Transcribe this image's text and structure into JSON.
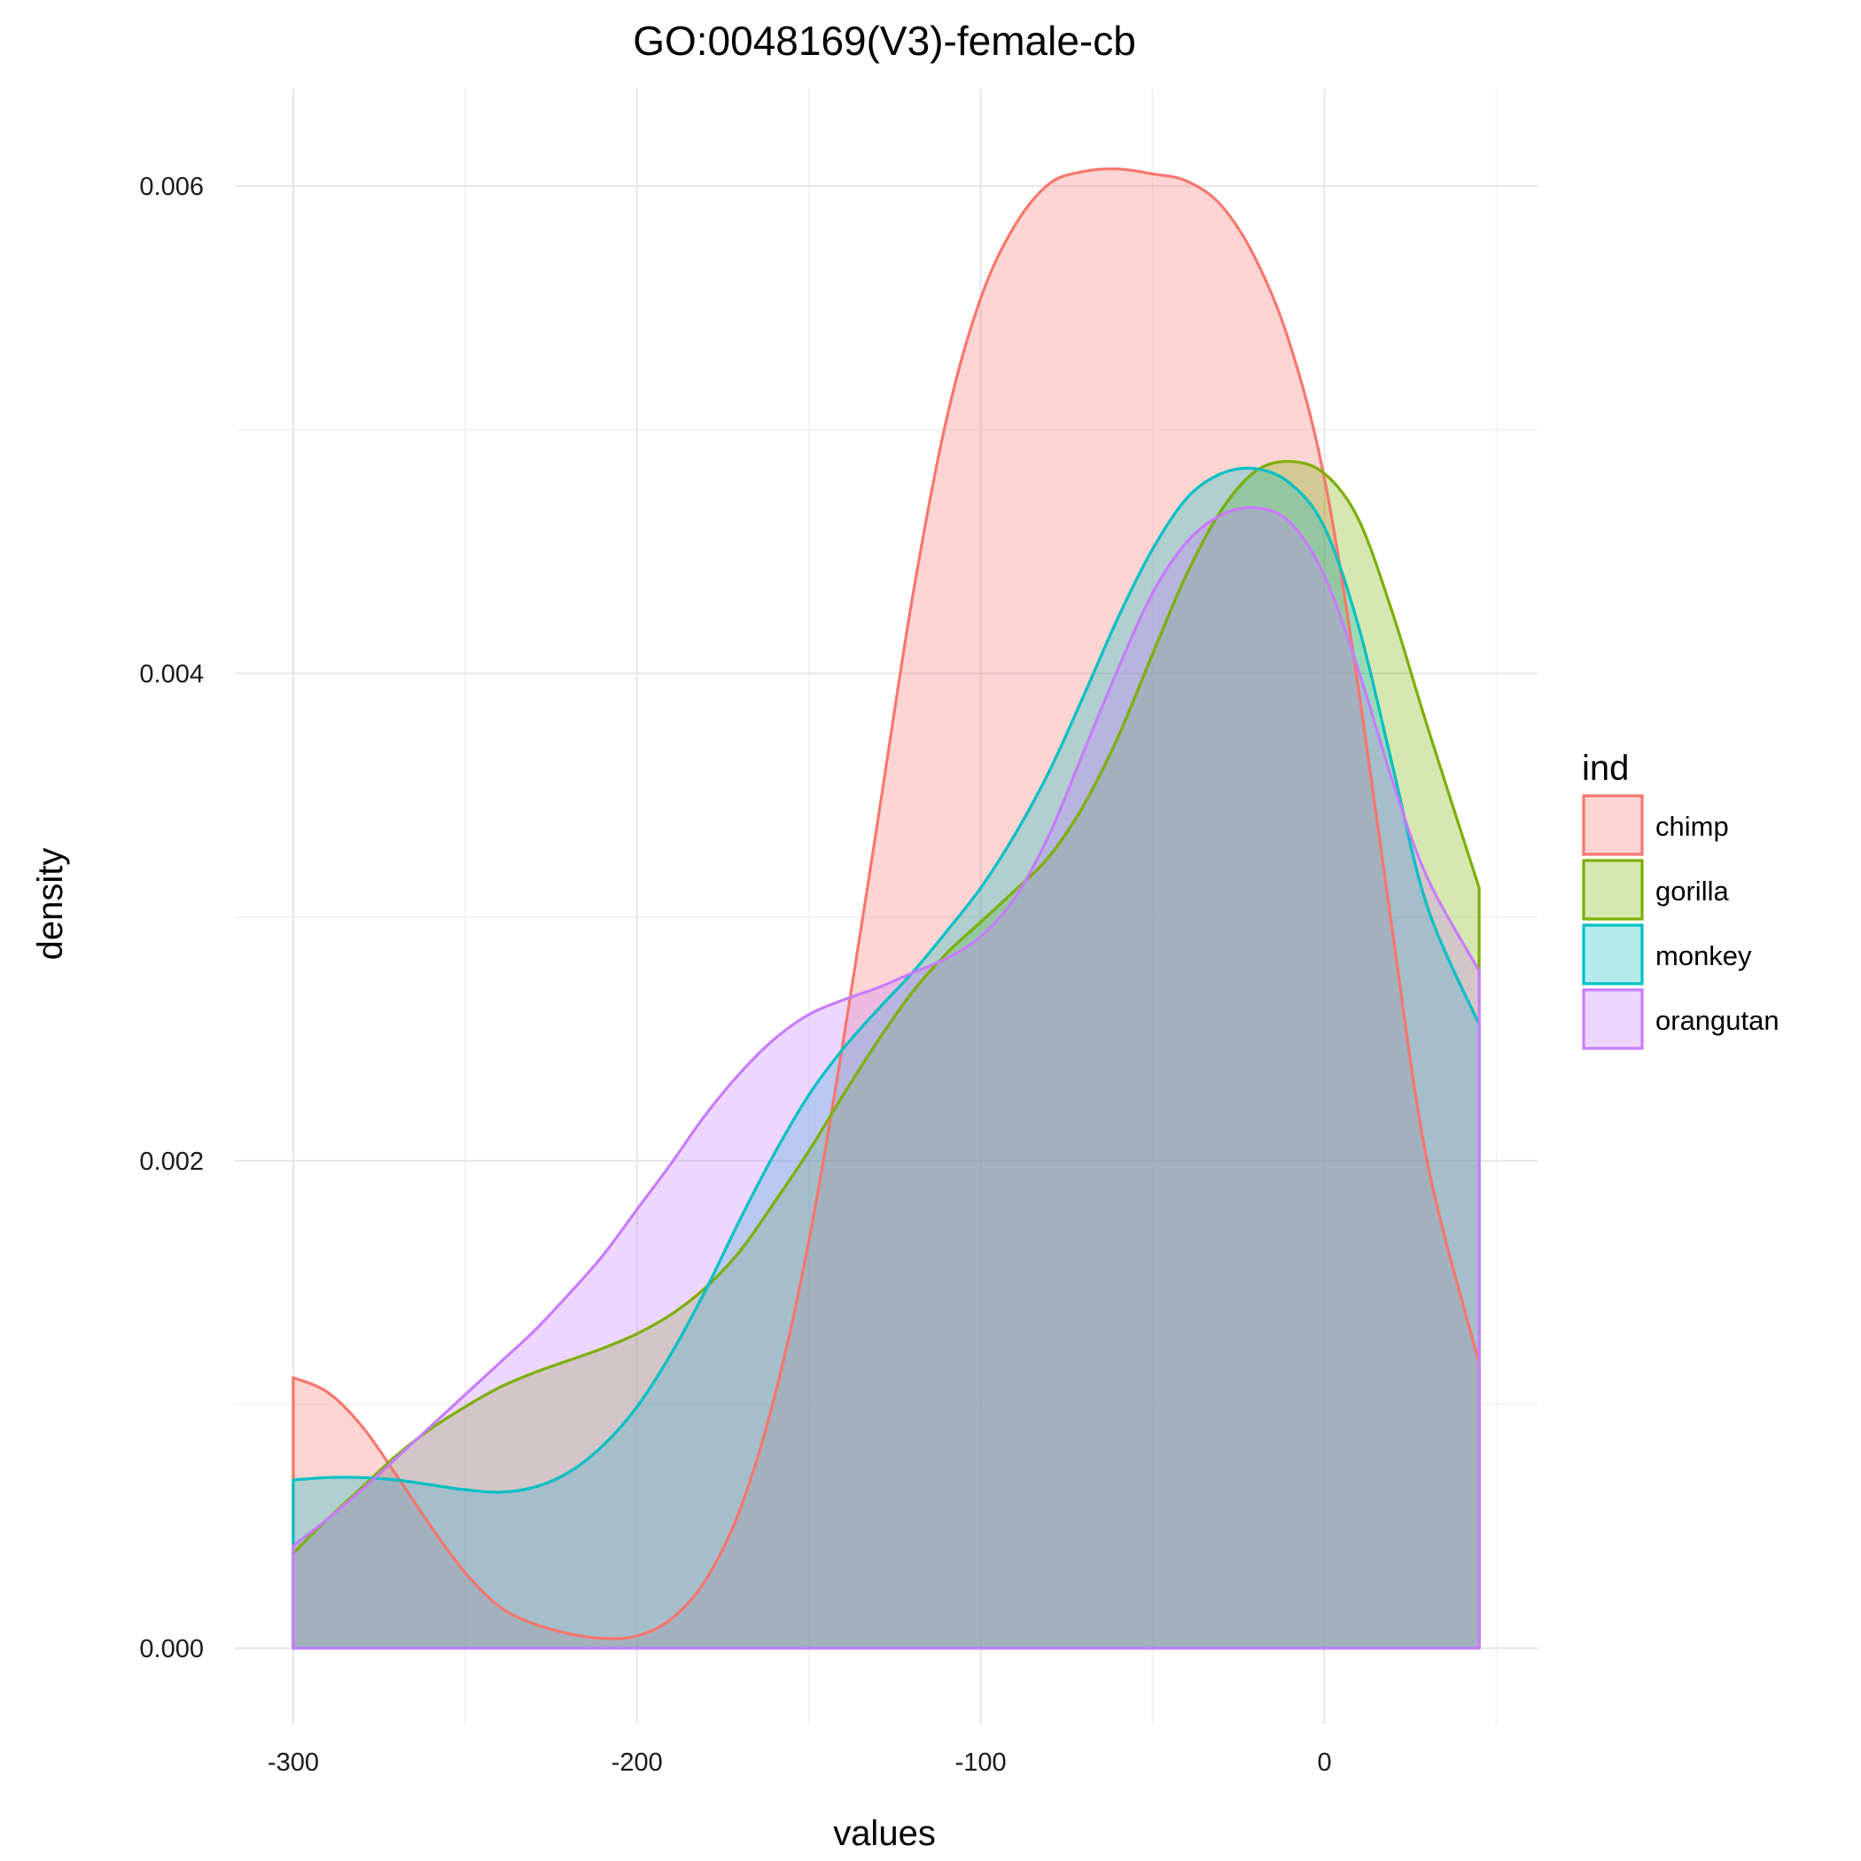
{
  "chart_data": {
    "type": "area",
    "subtype": "density",
    "title": "GO:0048169(V3)-female-cb",
    "xlabel": "values",
    "ylabel": "density",
    "xlim": [
      -317,
      62
    ],
    "ylim": [
      -0.00031,
      0.0064
    ],
    "xticks": [
      -300,
      -200,
      -100,
      0
    ],
    "xtick_labels": [
      "-300",
      "-200",
      "-100",
      "0"
    ],
    "yticks": [
      0.0,
      0.002,
      0.004,
      0.006
    ],
    "ytick_labels": [
      "0.000",
      "0.002",
      "0.004",
      "0.006"
    ],
    "grid": true,
    "legend": {
      "title": "ind",
      "position": "right"
    },
    "fill_opacity": 0.3,
    "series": [
      {
        "name": "chimp",
        "color": "#F8766D",
        "x": [
          -300,
          -290,
          -280,
          -270,
          -260,
          -250,
          -240,
          -230,
          -220,
          -210,
          -200,
          -190,
          -180,
          -170,
          -160,
          -150,
          -140,
          -130,
          -120,
          -110,
          -100,
          -90,
          -80,
          -70,
          -60,
          -50,
          -40,
          -30,
          -20,
          -10,
          0,
          10,
          20,
          30,
          45
        ],
        "y": [
          0.00111,
          0.00105,
          0.00091,
          0.00071,
          0.0005,
          0.00031,
          0.00017,
          0.0001,
          6e-05,
          4e-05,
          5e-05,
          0.00012,
          0.00028,
          0.00057,
          0.00103,
          0.00167,
          0.00249,
          0.00339,
          0.0043,
          0.00504,
          0.00554,
          0.00584,
          0.00601,
          0.00606,
          0.00607,
          0.00605,
          0.00602,
          0.00592,
          0.0057,
          0.00535,
          0.0048,
          0.00393,
          0.00292,
          0.00199,
          0.00117
        ]
      },
      {
        "name": "gorilla",
        "color": "#7CAE00",
        "x": [
          -300,
          -290,
          -280,
          -270,
          -260,
          -250,
          -240,
          -230,
          -220,
          -210,
          -200,
          -190,
          -180,
          -170,
          -160,
          -150,
          -140,
          -130,
          -120,
          -110,
          -100,
          -90,
          -80,
          -70,
          -60,
          -50,
          -40,
          -30,
          -20,
          -10,
          0,
          10,
          20,
          30,
          45
        ],
        "y": [
          0.00039,
          0.00053,
          0.00066,
          0.00079,
          0.0009,
          0.00099,
          0.00107,
          0.00113,
          0.00118,
          0.00123,
          0.00129,
          0.00137,
          0.00148,
          0.00163,
          0.00183,
          0.00204,
          0.00227,
          0.00249,
          0.00269,
          0.00285,
          0.00298,
          0.00311,
          0.00325,
          0.00346,
          0.00374,
          0.00408,
          0.00441,
          0.00467,
          0.00483,
          0.00487,
          0.00482,
          0.00463,
          0.00424,
          0.00378,
          0.00312
        ]
      },
      {
        "name": "monkey",
        "color": "#00BFC4",
        "x": [
          -300,
          -290,
          -280,
          -270,
          -260,
          -250,
          -240,
          -230,
          -220,
          -210,
          -200,
          -190,
          -180,
          -170,
          -160,
          -150,
          -140,
          -130,
          -120,
          -110,
          -100,
          -90,
          -80,
          -70,
          -60,
          -50,
          -40,
          -30,
          -20,
          -10,
          0,
          10,
          20,
          30,
          45
        ],
        "y": [
          0.00069,
          0.0007,
          0.0007,
          0.00069,
          0.00067,
          0.00065,
          0.00064,
          0.00066,
          0.00072,
          0.00083,
          0.00099,
          0.00121,
          0.00147,
          0.00176,
          0.00203,
          0.00227,
          0.00246,
          0.00262,
          0.00277,
          0.00294,
          0.00312,
          0.00334,
          0.0036,
          0.00391,
          0.00423,
          0.00451,
          0.00472,
          0.00482,
          0.00484,
          0.00478,
          0.0046,
          0.00419,
          0.00361,
          0.00304,
          0.00256
        ]
      },
      {
        "name": "orangutan",
        "color": "#C77CFF",
        "x": [
          -300,
          -290,
          -280,
          -270,
          -260,
          -250,
          -240,
          -230,
          -220,
          -210,
          -200,
          -190,
          -180,
          -170,
          -160,
          -150,
          -140,
          -130,
          -120,
          -110,
          -100,
          -90,
          -80,
          -70,
          -60,
          -50,
          -40,
          -30,
          -20,
          -10,
          0,
          10,
          20,
          30,
          45
        ],
        "y": [
          0.00042,
          0.00053,
          0.00065,
          0.00078,
          0.00091,
          0.00104,
          0.00117,
          0.0013,
          0.00145,
          0.00161,
          0.0018,
          0.00199,
          0.00219,
          0.00236,
          0.0025,
          0.0026,
          0.00266,
          0.00271,
          0.00277,
          0.00283,
          0.00292,
          0.00308,
          0.00334,
          0.00368,
          0.00402,
          0.00433,
          0.00454,
          0.00465,
          0.00468,
          0.00462,
          0.0044,
          0.00401,
          0.00355,
          0.00316,
          0.00278
        ]
      }
    ]
  }
}
